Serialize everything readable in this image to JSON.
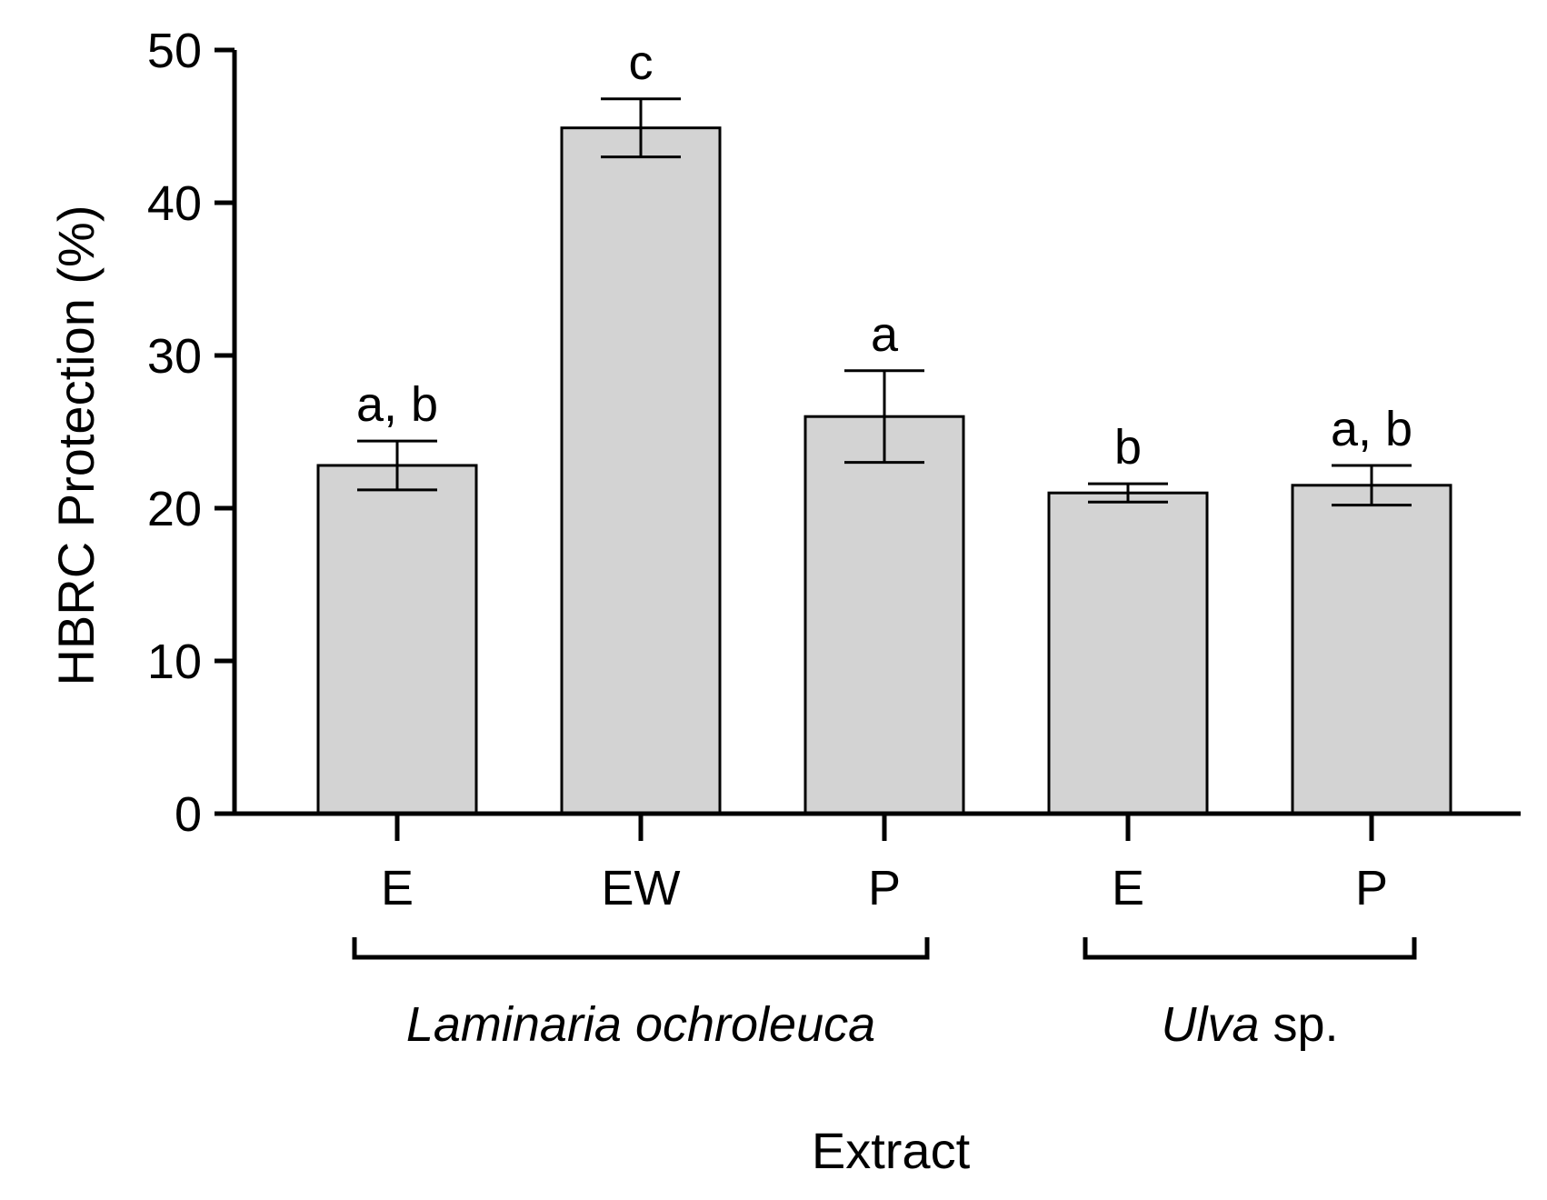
{
  "chart_data": {
    "type": "bar",
    "ylabel": "HBRC Protection (%)",
    "xlabel": "Extract",
    "ylim": [
      0,
      50
    ],
    "yticks": [
      0,
      10,
      20,
      30,
      40,
      50
    ],
    "categories": [
      "E",
      "EW",
      "P",
      "E",
      "P"
    ],
    "values": [
      22.8,
      44.9,
      26.0,
      21.0,
      21.5
    ],
    "errors": [
      1.6,
      1.9,
      3.0,
      0.6,
      1.3
    ],
    "significance": [
      "a, b",
      "c",
      "a",
      "b",
      "a, b"
    ],
    "groups": [
      {
        "name_italic": "Laminaria ochroleuca",
        "name_plain": "",
        "start": 0,
        "end": 2
      },
      {
        "name_italic": "Ulva",
        "name_plain": " sp.",
        "start": 3,
        "end": 4
      }
    ]
  },
  "colors": {
    "bar_fill": "#d3d3d3",
    "stroke": "#000000"
  }
}
